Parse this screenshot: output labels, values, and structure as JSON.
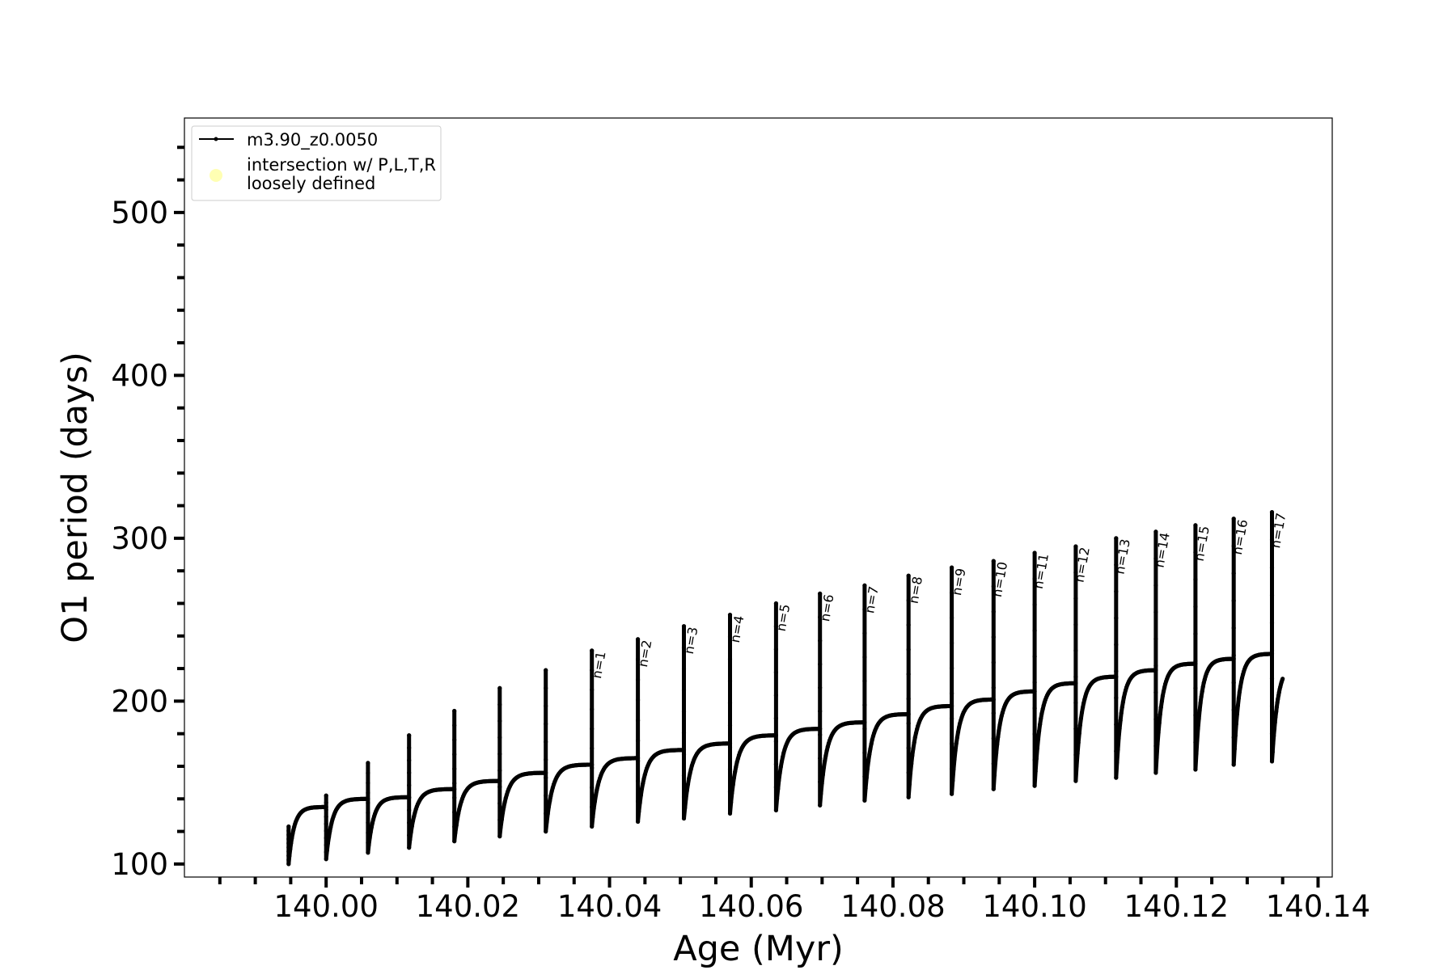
{
  "chart_data": {
    "type": "line",
    "xlabel": "Age (Myr)",
    "ylabel": "O1 period (days)",
    "xlim": [
      139.98,
      140.142
    ],
    "ylim": [
      92,
      558
    ],
    "xticks": [
      "140.00",
      "140.02",
      "140.04",
      "140.06",
      "140.08",
      "140.10",
      "140.12",
      "140.14"
    ],
    "xtick_values": [
      140.0,
      140.02,
      140.04,
      140.06,
      140.08,
      140.1,
      140.12,
      140.14
    ],
    "yticks": [
      "100",
      "200",
      "300",
      "400",
      "500"
    ],
    "ytick_values": [
      100,
      200,
      300,
      400,
      500
    ],
    "legend": {
      "placement": "top-left",
      "entries": [
        {
          "label": "m3.90_z0.0050",
          "marker": "line-dot",
          "color": "#000000"
        },
        {
          "label_lines": [
            "intersection w/ P,L,T,R",
            "loosely defined"
          ],
          "marker": "circle",
          "color": "#ffffb3"
        }
      ]
    },
    "series": [
      {
        "name": "m3.90_z0.0050",
        "color": "#000000",
        "marker_size": "small",
        "cycles": [
          {
            "start": 139.9947,
            "peak": 123,
            "min": 100,
            "plateau": 135,
            "end": 140.0
          },
          {
            "start": 140.0,
            "peak": 142,
            "min": 103,
            "plateau": 140,
            "end": 140.0059
          },
          {
            "start": 140.0059,
            "peak": 162,
            "min": 107,
            "plateau": 141,
            "end": 140.0117
          },
          {
            "start": 140.0117,
            "peak": 179,
            "min": 110,
            "plateau": 146,
            "end": 140.0181
          },
          {
            "start": 140.0181,
            "peak": 194,
            "min": 114,
            "plateau": 151,
            "end": 140.0245
          },
          {
            "start": 140.0245,
            "peak": 208,
            "min": 117,
            "plateau": 156,
            "end": 140.031
          },
          {
            "start": 140.031,
            "peak": 219,
            "min": 120,
            "plateau": 161,
            "end": 140.0375
          },
          {
            "start": 140.0375,
            "peak": 231,
            "min": 123,
            "plateau": 165,
            "end": 140.044,
            "label": "n=1"
          },
          {
            "start": 140.044,
            "peak": 238,
            "min": 126,
            "plateau": 170,
            "end": 140.0505,
            "label": "n=2"
          },
          {
            "start": 140.0505,
            "peak": 246,
            "min": 128,
            "plateau": 174,
            "end": 140.057,
            "label": "n=3"
          },
          {
            "start": 140.057,
            "peak": 253,
            "min": 131,
            "plateau": 179,
            "end": 140.0635,
            "label": "n=4"
          },
          {
            "start": 140.0635,
            "peak": 260,
            "min": 133,
            "plateau": 183,
            "end": 140.0697,
            "label": "n=5"
          },
          {
            "start": 140.0697,
            "peak": 266,
            "min": 136,
            "plateau": 187,
            "end": 140.076,
            "label": "n=6"
          },
          {
            "start": 140.076,
            "peak": 271,
            "min": 139,
            "plateau": 192,
            "end": 140.0822,
            "label": "n=7"
          },
          {
            "start": 140.0822,
            "peak": 277,
            "min": 141,
            "plateau": 197,
            "end": 140.0883,
            "label": "n=8"
          },
          {
            "start": 140.0883,
            "peak": 282,
            "min": 143,
            "plateau": 201,
            "end": 140.0942,
            "label": "n=9"
          },
          {
            "start": 140.0942,
            "peak": 286,
            "min": 146,
            "plateau": 206,
            "end": 140.1,
            "label": "n=10"
          },
          {
            "start": 140.1,
            "peak": 291,
            "min": 148,
            "plateau": 211,
            "end": 140.1058,
            "label": "n=11"
          },
          {
            "start": 140.1058,
            "peak": 295,
            "min": 151,
            "plateau": 215,
            "end": 140.1115,
            "label": "n=12"
          },
          {
            "start": 140.1115,
            "peak": 300,
            "min": 153,
            "plateau": 219,
            "end": 140.1171,
            "label": "n=13"
          },
          {
            "start": 140.1171,
            "peak": 304,
            "min": 156,
            "plateau": 223,
            "end": 140.1227,
            "label": "n=14"
          },
          {
            "start": 140.1227,
            "peak": 308,
            "min": 158,
            "plateau": 226,
            "end": 140.1281,
            "label": "n=15"
          },
          {
            "start": 140.1281,
            "peak": 312,
            "min": 161,
            "plateau": 229,
            "end": 140.1335,
            "label": "n=16"
          },
          {
            "start": 140.1335,
            "peak": 316,
            "min": 163,
            "plateau": 224,
            "end": 140.135,
            "label": "n=17",
            "partial": true
          }
        ]
      }
    ]
  }
}
